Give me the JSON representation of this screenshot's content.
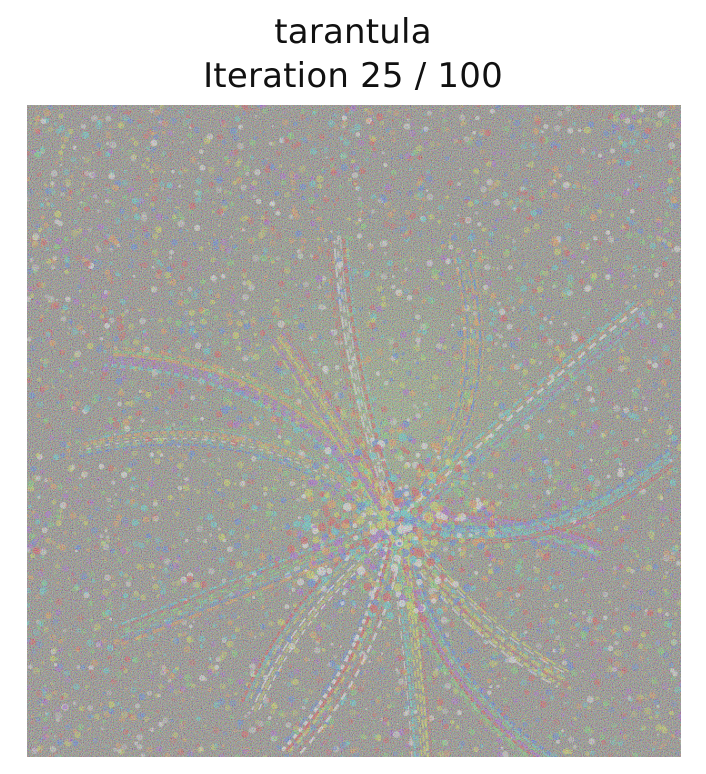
{
  "figure": {
    "title": "tarantula",
    "subtitle": "Iteration 25 / 100"
  },
  "image": {
    "subject": "noisy class-visualization texture with radiating spider-leg-like strokes",
    "palette": {
      "background": "#7c7a72",
      "noise_colors": [
        "#d23a3a",
        "#3a6fd8",
        "#64c85a",
        "#c8d23a",
        "#9a4ac8",
        "#e08a3a",
        "#3ac8c8",
        "#e6e6e6"
      ]
    }
  }
}
